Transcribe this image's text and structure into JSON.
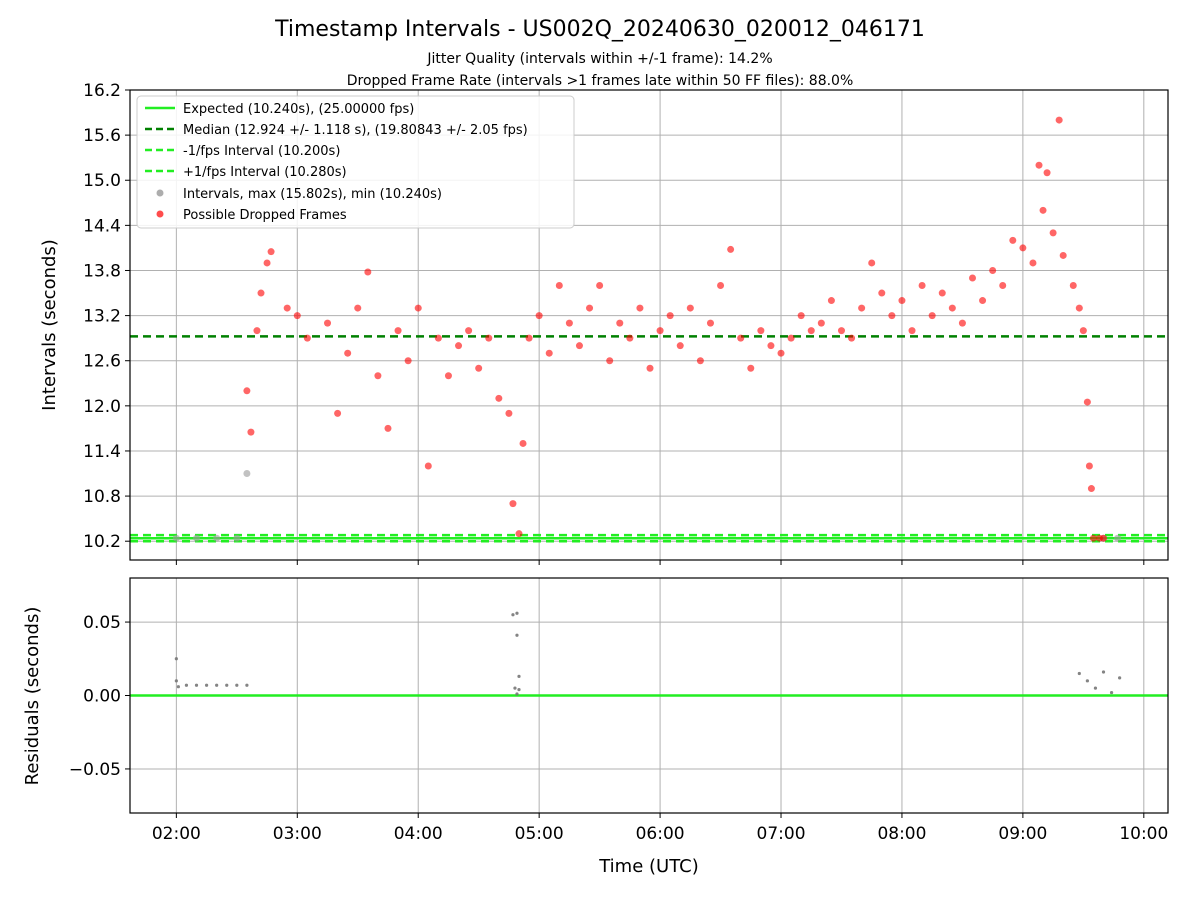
{
  "chart_data": [
    {
      "type": "scatter",
      "title": "Timestamp Intervals - US002Q_20240630_020012_046171",
      "subtitle_lines": [
        "Jitter Quality (intervals within +/-1 frame): 14.2%",
        "Dropped Frame Rate (intervals >1 frames late within 50 FF files): 88.0%"
      ],
      "ylabel": "Intervals (seconds)",
      "xlabel": "",
      "xlim": [
        "01:37",
        "10:12"
      ],
      "ylim": [
        9.95,
        16.2
      ],
      "yticks": [
        "10.2",
        "10.8",
        "11.4",
        "12.0",
        "12.6",
        "13.2",
        "13.8",
        "14.4",
        "15.0",
        "15.6",
        "16.2"
      ],
      "xticks": [
        "02:00",
        "03:00",
        "04:00",
        "05:00",
        "06:00",
        "07:00",
        "08:00",
        "09:00",
        "10:00"
      ],
      "grid": true,
      "legend_position": "upper-left",
      "reference_lines": [
        {
          "name": "Expected (10.240s), (25.00000 fps)",
          "y": 10.24,
          "color": "#22ee22",
          "style": "solid"
        },
        {
          "name": "Median (12.924 +/- 1.118 s), (19.80843 +/- 2.05 fps)",
          "y": 12.924,
          "color": "#008000",
          "style": "dashed"
        },
        {
          "name": "-1/fps Interval (10.200s)",
          "y": 10.2,
          "color": "#22ee22",
          "style": "dashed"
        },
        {
          "name": "+1/fps Interval (10.280s)",
          "y": 10.28,
          "color": "#22ee22",
          "style": "dashed"
        }
      ],
      "series": [
        {
          "name": "Intervals, max (15.802s), min (10.240s)",
          "color": "#999999",
          "sample_points": [
            [
              "02:00",
              10.24
            ],
            [
              "02:10",
              10.24
            ],
            [
              "02:20",
              10.24
            ],
            [
              "02:30",
              10.24
            ],
            [
              "02:35",
              11.1
            ],
            [
              "09:40",
              10.24
            ],
            [
              "09:47",
              10.24
            ]
          ]
        },
        {
          "name": "Possible Dropped Frames",
          "color": "#ff0000",
          "sample_points": [
            [
              "02:35",
              12.2
            ],
            [
              "02:37",
              11.65
            ],
            [
              "02:40",
              13.0
            ],
            [
              "02:42",
              13.5
            ],
            [
              "02:45",
              13.9
            ],
            [
              "02:47",
              14.05
            ],
            [
              "02:55",
              13.3
            ],
            [
              "03:00",
              13.2
            ],
            [
              "03:05",
              12.9
            ],
            [
              "03:15",
              13.1
            ],
            [
              "03:20",
              11.9
            ],
            [
              "03:25",
              12.7
            ],
            [
              "03:30",
              13.3
            ],
            [
              "03:35",
              13.78
            ],
            [
              "03:40",
              12.4
            ],
            [
              "03:45",
              11.7
            ],
            [
              "03:50",
              13.0
            ],
            [
              "03:55",
              12.6
            ],
            [
              "04:00",
              13.3
            ],
            [
              "04:05",
              11.2
            ],
            [
              "04:10",
              12.9
            ],
            [
              "04:15",
              12.4
            ],
            [
              "04:20",
              12.8
            ],
            [
              "04:25",
              13.0
            ],
            [
              "04:30",
              12.5
            ],
            [
              "04:35",
              12.9
            ],
            [
              "04:40",
              12.1
            ],
            [
              "04:45",
              11.9
            ],
            [
              "04:47",
              10.7
            ],
            [
              "04:50",
              10.3
            ],
            [
              "04:52",
              11.5
            ],
            [
              "04:55",
              12.9
            ],
            [
              "05:00",
              13.2
            ],
            [
              "05:05",
              12.7
            ],
            [
              "05:10",
              13.6
            ],
            [
              "05:15",
              13.1
            ],
            [
              "05:20",
              12.8
            ],
            [
              "05:25",
              13.3
            ],
            [
              "05:30",
              13.6
            ],
            [
              "05:35",
              12.6
            ],
            [
              "05:40",
              13.1
            ],
            [
              "05:45",
              12.9
            ],
            [
              "05:50",
              13.3
            ],
            [
              "05:55",
              12.5
            ],
            [
              "06:00",
              13.0
            ],
            [
              "06:05",
              13.2
            ],
            [
              "06:10",
              12.8
            ],
            [
              "06:15",
              13.3
            ],
            [
              "06:20",
              12.6
            ],
            [
              "06:25",
              13.1
            ],
            [
              "06:30",
              13.6
            ],
            [
              "06:35",
              14.08
            ],
            [
              "06:40",
              12.9
            ],
            [
              "06:45",
              12.5
            ],
            [
              "06:50",
              13.0
            ],
            [
              "06:55",
              12.8
            ],
            [
              "07:00",
              12.7
            ],
            [
              "07:05",
              12.9
            ],
            [
              "07:10",
              13.2
            ],
            [
              "07:15",
              13.0
            ],
            [
              "07:20",
              13.1
            ],
            [
              "07:25",
              13.4
            ],
            [
              "07:30",
              13.0
            ],
            [
              "07:35",
              12.9
            ],
            [
              "07:40",
              13.3
            ],
            [
              "07:45",
              13.9
            ],
            [
              "07:50",
              13.5
            ],
            [
              "07:55",
              13.2
            ],
            [
              "08:00",
              13.4
            ],
            [
              "08:05",
              13.0
            ],
            [
              "08:10",
              13.6
            ],
            [
              "08:15",
              13.2
            ],
            [
              "08:20",
              13.5
            ],
            [
              "08:25",
              13.3
            ],
            [
              "08:30",
              13.1
            ],
            [
              "08:35",
              13.7
            ],
            [
              "08:40",
              13.4
            ],
            [
              "08:45",
              13.8
            ],
            [
              "08:50",
              13.6
            ],
            [
              "08:55",
              14.2
            ],
            [
              "09:00",
              14.1
            ],
            [
              "09:05",
              13.9
            ],
            [
              "09:08",
              15.2
            ],
            [
              "09:10",
              14.6
            ],
            [
              "09:12",
              15.1
            ],
            [
              "09:15",
              14.3
            ],
            [
              "09:18",
              15.8
            ],
            [
              "09:20",
              14.0
            ],
            [
              "09:25",
              13.6
            ],
            [
              "09:28",
              13.3
            ],
            [
              "09:30",
              13.0
            ],
            [
              "09:32",
              12.05
            ],
            [
              "09:33",
              11.2
            ],
            [
              "09:34",
              10.9
            ],
            [
              "09:35",
              10.24
            ],
            [
              "09:38",
              10.24
            ],
            [
              "09:40",
              10.24
            ]
          ]
        }
      ]
    },
    {
      "type": "scatter",
      "xlabel": "Time (UTC)",
      "ylabel": "Residuals (seconds)",
      "xlim": [
        "01:37",
        "10:12"
      ],
      "ylim": [
        -0.08,
        0.08
      ],
      "yticks": [
        "0.05",
        "0.00",
        "−0.05"
      ],
      "xticks": [
        "02:00",
        "03:00",
        "04:00",
        "05:00",
        "06:00",
        "07:00",
        "08:00",
        "09:00",
        "10:00"
      ],
      "grid": true,
      "reference_lines": [
        {
          "y": 0.0,
          "color": "#22ee22",
          "style": "solid"
        }
      ],
      "series": [
        {
          "color": "#777777",
          "sample_points": [
            [
              "02:00",
              0.025
            ],
            [
              "02:00",
              0.01
            ],
            [
              "02:01",
              0.006
            ],
            [
              "02:05",
              0.007
            ],
            [
              "02:10",
              0.007
            ],
            [
              "02:15",
              0.007
            ],
            [
              "02:20",
              0.007
            ],
            [
              "02:25",
              0.007
            ],
            [
              "02:30",
              0.007
            ],
            [
              "02:35",
              0.007
            ],
            [
              "04:47",
              0.055
            ],
            [
              "04:49",
              0.056
            ],
            [
              "04:49",
              0.041
            ],
            [
              "04:50",
              0.013
            ],
            [
              "04:48",
              0.005
            ],
            [
              "04:50",
              0.004
            ],
            [
              "04:49",
              0.001
            ],
            [
              "09:28",
              0.015
            ],
            [
              "09:32",
              0.01
            ],
            [
              "09:36",
              0.005
            ],
            [
              "09:40",
              0.016
            ],
            [
              "09:44",
              0.002
            ],
            [
              "09:48",
              0.012
            ]
          ]
        }
      ]
    }
  ]
}
